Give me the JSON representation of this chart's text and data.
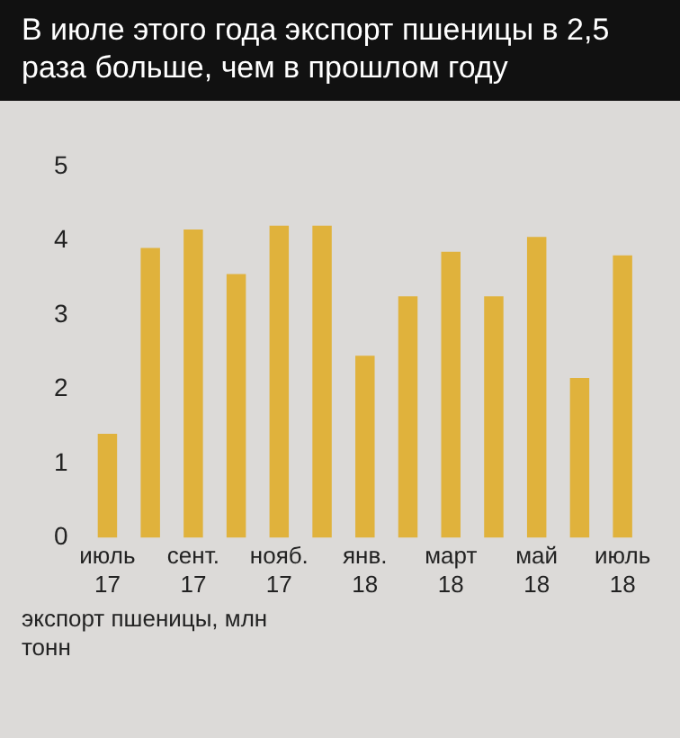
{
  "chart_data": {
    "type": "bar",
    "title": "В июле этого года экспорт пшеницы в 2,5 раза больше, чем в прошлом году",
    "ylabel": "экспорт пшеницы, млн тонн",
    "categories": [
      "июль 17",
      null,
      "сент. 17",
      null,
      "нояб. 17",
      null,
      "янв. 18",
      null,
      "март 18",
      null,
      "май 18",
      null,
      "июль 18"
    ],
    "values": [
      1.4,
      3.9,
      4.15,
      3.55,
      4.2,
      4.2,
      2.45,
      3.25,
      3.85,
      3.25,
      4.05,
      2.15,
      3.8
    ],
    "color": "#e0b23c",
    "ylim": [
      0,
      5
    ],
    "yticks": [
      0,
      1,
      2,
      3,
      4,
      5
    ],
    "grid": false
  }
}
